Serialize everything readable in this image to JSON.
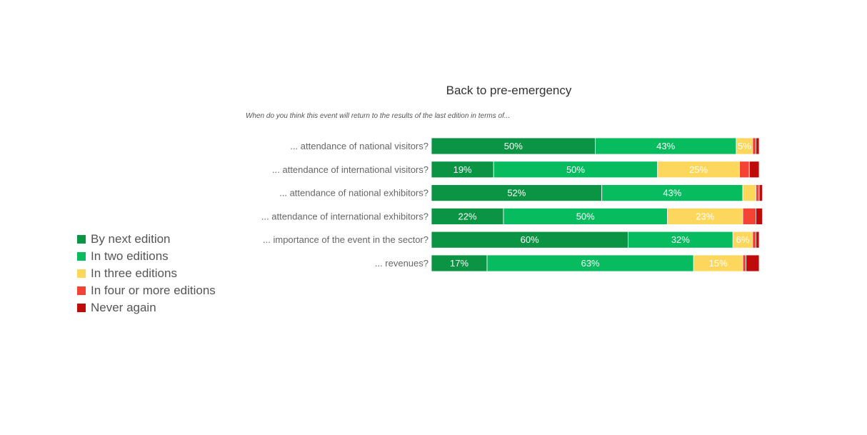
{
  "chart_data": {
    "type": "bar",
    "orientation": "horizontal",
    "stacked": true,
    "title": "Back to pre-emergency",
    "subtitle": "When do you think this event will return to the results of the last edition in terms of...",
    "categories": [
      "... attendance of national visitors?",
      "... attendance of international visitors?",
      "... attendance of national exhibitors?",
      "... attendance of international exhibitors?",
      "... importance of the event in the sector?",
      "... revenues?"
    ],
    "series": [
      {
        "name": "By next edition",
        "color": "#0a9444",
        "values": [
          50,
          19,
          52,
          22,
          60,
          17
        ]
      },
      {
        "name": "In two editions",
        "color": "#06bc5f",
        "values": [
          43,
          50,
          43,
          50,
          32,
          63
        ]
      },
      {
        "name": "In three editions",
        "color": "#fdd75c",
        "values": [
          5,
          25,
          4,
          23,
          6,
          15
        ]
      },
      {
        "name": "In four or more editions",
        "color": "#f44235",
        "values": [
          1,
          3,
          1,
          4,
          1,
          1
        ]
      },
      {
        "name": "Never again",
        "color": "#c00b0b",
        "values": [
          1,
          3,
          1,
          2,
          1,
          4
        ]
      }
    ],
    "data_labels": [
      [
        "50%",
        "43%",
        "5%",
        "",
        ""
      ],
      [
        "19%",
        "50%",
        "25%",
        "",
        ""
      ],
      [
        "52%",
        "43%",
        "",
        "",
        ""
      ],
      [
        "22%",
        "50%",
        "23%",
        "",
        ""
      ],
      [
        "60%",
        "32%",
        "6%",
        "",
        ""
      ],
      [
        "17%",
        "63%",
        "15%",
        "",
        ""
      ]
    ],
    "xlim": [
      0,
      100
    ],
    "grid": false,
    "legend_position": "left"
  }
}
